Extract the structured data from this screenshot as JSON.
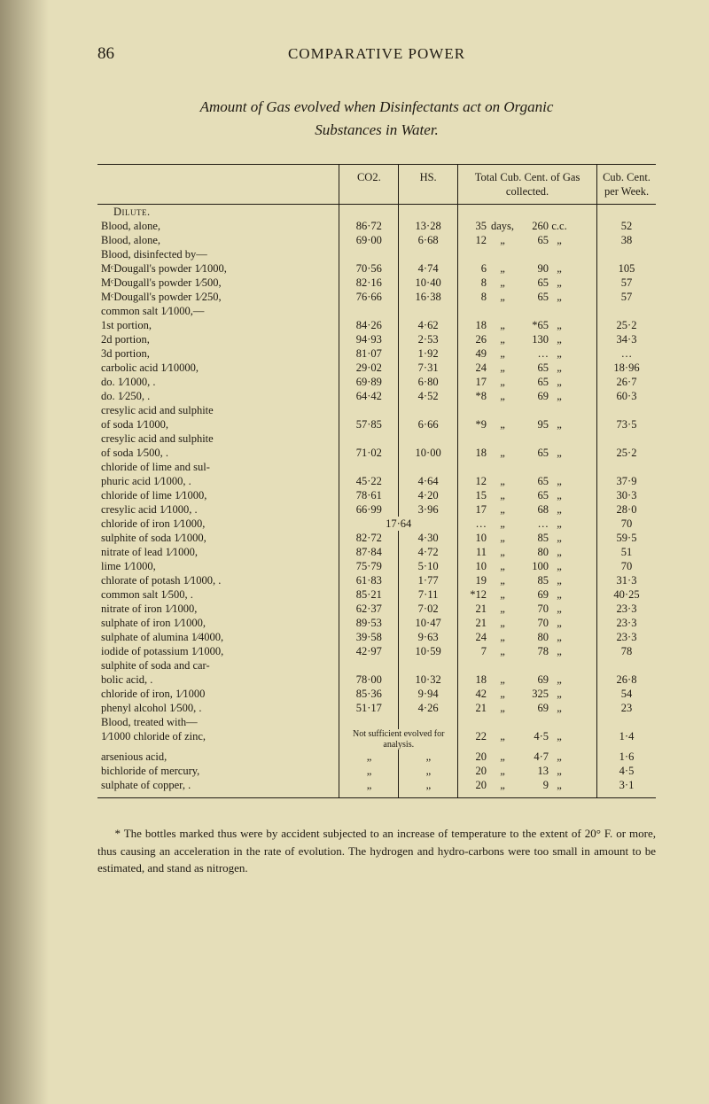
{
  "page_number": "86",
  "running_head": "COMPARATIVE POWER",
  "title_line1": "Amount of Gas evolved when Disinfectants act on Organic",
  "title_line2": "Substances in Water.",
  "columns": {
    "c1": "",
    "c2": "CO2.",
    "c3": "HS.",
    "c4": "Total Cub. Cent. of Gas collected.",
    "c5": "Cub. Cent. per Week."
  },
  "section_heads": {
    "dilute": "Dilute.",
    "blood_disinfected": "Blood, disinfected by—",
    "blood_treated": "Blood, treated with—"
  },
  "rows": [
    {
      "label": "Blood, alone,",
      "indent": 0,
      "co2": "86·72",
      "hs": "13·28",
      "gas_n": "35",
      "gas_u": "days,",
      "gas_v": "260",
      "gas_u2": "c.c.",
      "cub": "52"
    },
    {
      "label": "Blood, alone,",
      "indent": 0,
      "co2": "69·00",
      "hs": "6·68",
      "gas_n": "12",
      "gas_u": "„",
      "gas_v": "65",
      "gas_u2": "„",
      "cub": "38"
    },
    {
      "label": "MᶜDougall's powder 1⁄1000,",
      "indent": 1,
      "co2": "70·56",
      "hs": "4·74",
      "gas_n": "6",
      "gas_u": "„",
      "gas_v": "90",
      "gas_u2": "„",
      "cub": "105"
    },
    {
      "label": "MᶜDougall's powder 1⁄500,",
      "indent": 1,
      "co2": "82·16",
      "hs": "10·40",
      "gas_n": "8",
      "gas_u": "„",
      "gas_v": "65",
      "gas_u2": "„",
      "cub": "57"
    },
    {
      "label": "MᶜDougall's powder 1⁄250,",
      "indent": 1,
      "co2": "76·66",
      "hs": "16·38",
      "gas_n": "8",
      "gas_u": "„",
      "gas_v": "65",
      "gas_u2": "„",
      "cub": "57"
    },
    {
      "label": "common salt 1⁄1000,—",
      "indent": 1,
      "co2": "",
      "hs": "",
      "gas_n": "",
      "gas_u": "",
      "gas_v": "",
      "gas_u2": "",
      "cub": ""
    },
    {
      "label": "1st portion,",
      "indent": 2,
      "co2": "84·26",
      "hs": "4·62",
      "gas_n": "18",
      "gas_u": "„",
      "gas_v": "*65",
      "gas_u2": "„",
      "cub": "25·2"
    },
    {
      "label": "2d portion,",
      "indent": 2,
      "co2": "94·93",
      "hs": "2·53",
      "gas_n": "26",
      "gas_u": "„",
      "gas_v": "130",
      "gas_u2": "„",
      "cub": "34·3"
    },
    {
      "label": "3d portion,",
      "indent": 2,
      "co2": "81·07",
      "hs": "1·92",
      "gas_n": "49",
      "gas_u": "„",
      "gas_v": "…",
      "gas_u2": "„",
      "cub": "…"
    },
    {
      "label": "carbolic acid 1⁄10000,",
      "indent": 1,
      "co2": "29·02",
      "hs": "7·31",
      "gas_n": "24",
      "gas_u": "„",
      "gas_v": "65",
      "gas_u2": "„",
      "cub": "18·96"
    },
    {
      "label": "do.   1⁄1000,  .",
      "indent": 2,
      "co2": "69·89",
      "hs": "6·80",
      "gas_n": "17",
      "gas_u": "„",
      "gas_v": "65",
      "gas_u2": "„",
      "cub": "26·7"
    },
    {
      "label": "do.   1⁄250,   .",
      "indent": 2,
      "co2": "64·42",
      "hs": "4·52",
      "gas_n": "*8",
      "gas_u": "„",
      "gas_v": "69",
      "gas_u2": "„",
      "cub": "60·3"
    },
    {
      "label": "cresylic acid and sulphite",
      "indent": 1,
      "co2": "",
      "hs": "",
      "gas_n": "",
      "gas_u": "",
      "gas_v": "",
      "gas_u2": "",
      "cub": ""
    },
    {
      "label": "of soda 1⁄1000,",
      "indent": 2,
      "co2": "57·85",
      "hs": "6·66",
      "gas_n": "*9",
      "gas_u": "„",
      "gas_v": "95",
      "gas_u2": "„",
      "cub": "73·5"
    },
    {
      "label": "cresylic acid and sulphite",
      "indent": 1,
      "co2": "",
      "hs": "",
      "gas_n": "",
      "gas_u": "",
      "gas_v": "",
      "gas_u2": "",
      "cub": ""
    },
    {
      "label": "of soda 1⁄500, .",
      "indent": 2,
      "co2": "71·02",
      "hs": "10·00",
      "gas_n": "18",
      "gas_u": "„",
      "gas_v": "65",
      "gas_u2": "„",
      "cub": "25·2"
    },
    {
      "label": "chloride of lime and sul-",
      "indent": 1,
      "co2": "",
      "hs": "",
      "gas_n": "",
      "gas_u": "",
      "gas_v": "",
      "gas_u2": "",
      "cub": ""
    },
    {
      "label": "phuric acid 1⁄1000, .",
      "indent": 2,
      "co2": "45·22",
      "hs": "4·64",
      "gas_n": "12",
      "gas_u": "„",
      "gas_v": "65",
      "gas_u2": "„",
      "cub": "37·9"
    },
    {
      "label": "chloride of lime 1⁄1000,",
      "indent": 1,
      "co2": "78·61",
      "hs": "4·20",
      "gas_n": "15",
      "gas_u": "„",
      "gas_v": "65",
      "gas_u2": "„",
      "cub": "30·3"
    },
    {
      "label": "cresylic acid 1⁄1000, .",
      "indent": 1,
      "co2": "66·99",
      "hs": "3·96",
      "gas_n": "17",
      "gas_u": "„",
      "gas_v": "68",
      "gas_u2": "„",
      "cub": "28·0"
    },
    {
      "label": "chloride of iron 1⁄1000,",
      "indent": 1,
      "co2": "",
      "hs": "17·64",
      "gas_n": "…",
      "gas_u": "„",
      "gas_v": "…",
      "gas_u2": "„",
      "cub": "70",
      "span_hs": true
    },
    {
      "label": "sulphite of soda 1⁄1000,",
      "indent": 1,
      "co2": "82·72",
      "hs": "4·30",
      "gas_n": "10",
      "gas_u": "„",
      "gas_v": "85",
      "gas_u2": "„",
      "cub": "59·5"
    },
    {
      "label": "nitrate of lead 1⁄1000,",
      "indent": 1,
      "co2": "87·84",
      "hs": "4·72",
      "gas_n": "11",
      "gas_u": "„",
      "gas_v": "80",
      "gas_u2": "„",
      "cub": "51"
    },
    {
      "label": "lime 1⁄1000,",
      "indent": 1,
      "co2": "75·79",
      "hs": "5·10",
      "gas_n": "10",
      "gas_u": "„",
      "gas_v": "100",
      "gas_u2": "„",
      "cub": "70"
    },
    {
      "label": "chlorate of potash 1⁄1000, .",
      "indent": 1,
      "co2": "61·83",
      "hs": "1·77",
      "gas_n": "19",
      "gas_u": "„",
      "gas_v": "85",
      "gas_u2": "„",
      "cub": "31·3"
    },
    {
      "label": "common salt 1⁄500, .",
      "indent": 1,
      "co2": "85·21",
      "hs": "7·11",
      "gas_n": "*12",
      "gas_u": "„",
      "gas_v": "69",
      "gas_u2": "„",
      "cub": "40·25"
    },
    {
      "label": "nitrate of iron 1⁄1000,",
      "indent": 1,
      "co2": "62·37",
      "hs": "7·02",
      "gas_n": "21",
      "gas_u": "„",
      "gas_v": "70",
      "gas_u2": "„",
      "cub": "23·3"
    },
    {
      "label": "sulphate of iron 1⁄1000,",
      "indent": 1,
      "co2": "89·53",
      "hs": "10·47",
      "gas_n": "21",
      "gas_u": "„",
      "gas_v": "70",
      "gas_u2": "„",
      "cub": "23·3"
    },
    {
      "label": "sulphate of alumina 1⁄4000,",
      "indent": 1,
      "co2": "39·58",
      "hs": "9·63",
      "gas_n": "24",
      "gas_u": "„",
      "gas_v": "80",
      "gas_u2": "„",
      "cub": "23·3"
    },
    {
      "label": "iodide of potassium 1⁄1000,",
      "indent": 1,
      "co2": "42·97",
      "hs": "10·59",
      "gas_n": "7",
      "gas_u": "„",
      "gas_v": "78",
      "gas_u2": "„",
      "cub": "78"
    },
    {
      "label": "sulphite of soda and car-",
      "indent": 1,
      "co2": "",
      "hs": "",
      "gas_n": "",
      "gas_u": "",
      "gas_v": "",
      "gas_u2": "",
      "cub": ""
    },
    {
      "label": "bolic acid, .",
      "indent": 2,
      "co2": "78·00",
      "hs": "10·32",
      "gas_n": "18",
      "gas_u": "„",
      "gas_v": "69",
      "gas_u2": "„",
      "cub": "26·8"
    },
    {
      "label": "chloride of iron, 1⁄1000",
      "indent": 1,
      "co2": "85·36",
      "hs": "9·94",
      "gas_n": "42",
      "gas_u": "„",
      "gas_v": "325",
      "gas_u2": "„",
      "cub": "54"
    },
    {
      "label": "phenyl alcohol 1⁄500, .",
      "indent": 1,
      "co2": "51·17",
      "hs": "4·26",
      "gas_n": "21",
      "gas_u": "„",
      "gas_v": "69",
      "gas_u2": "„",
      "cub": "23"
    },
    {
      "label": "1⁄1000 chloride of zinc,",
      "indent": 1,
      "note": true,
      "gas_n": "22",
      "gas_u": "„",
      "gas_v": "4·5",
      "gas_u2": "„",
      "cub": "1·4"
    },
    {
      "label": "arsenious acid,",
      "indent": 2,
      "ditto": true,
      "gas_n": "20",
      "gas_u": "„",
      "gas_v": "4·7",
      "gas_u2": "„",
      "cub": "1·6"
    },
    {
      "label": "bichloride of mercury,",
      "indent": 2,
      "ditto": true,
      "gas_n": "20",
      "gas_u": "„",
      "gas_v": "13",
      "gas_u2": "„",
      "cub": "4·5"
    },
    {
      "label": "sulphate of copper, .",
      "indent": 2,
      "ditto": true,
      "gas_n": "20",
      "gas_u": "„",
      "gas_v": "9",
      "gas_u2": "„",
      "cub": "3·1"
    }
  ],
  "note_text": "Not sufficient evolved for analysis.",
  "ditto_mark": "„",
  "footnote": "* The bottles marked thus were by accident subjected to an increase of temperature to the extent of 20° F. or more, thus causing an acceleration in the rate of evolution. The hydrogen and hydro-carbons were too small in amount to be estimated, and stand as nitrogen."
}
